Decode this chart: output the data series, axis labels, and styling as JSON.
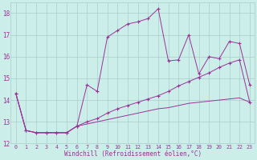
{
  "xlabel": "Windchill (Refroidissement éolien,°C)",
  "bg_color": "#cceee8",
  "grid_color": "#aacccc",
  "line_color": "#993399",
  "xlim": [
    -0.5,
    23.5
  ],
  "ylim": [
    12,
    18.5
  ],
  "yticks": [
    12,
    13,
    14,
    15,
    16,
    17,
    18
  ],
  "xticks": [
    0,
    1,
    2,
    3,
    4,
    5,
    6,
    7,
    8,
    9,
    10,
    11,
    12,
    13,
    14,
    15,
    16,
    17,
    18,
    19,
    20,
    21,
    22,
    23
  ],
  "series1": [
    [
      0,
      14.3
    ],
    [
      1,
      12.6
    ],
    [
      2,
      12.5
    ],
    [
      3,
      12.5
    ],
    [
      4,
      12.5
    ],
    [
      5,
      12.5
    ],
    [
      6,
      12.8
    ],
    [
      7,
      14.7
    ],
    [
      8,
      14.4
    ],
    [
      9,
      16.9
    ],
    [
      10,
      17.2
    ],
    [
      11,
      17.5
    ],
    [
      12,
      17.6
    ],
    [
      13,
      17.75
    ],
    [
      14,
      18.2
    ],
    [
      15,
      15.8
    ],
    [
      16,
      15.85
    ],
    [
      17,
      17.0
    ],
    [
      18,
      15.2
    ],
    [
      19,
      16.0
    ],
    [
      20,
      15.9
    ],
    [
      21,
      16.7
    ],
    [
      22,
      16.6
    ],
    [
      23,
      14.7
    ]
  ],
  "series2": [
    [
      0,
      14.3
    ],
    [
      1,
      12.6
    ],
    [
      2,
      12.5
    ],
    [
      3,
      12.5
    ],
    [
      4,
      12.5
    ],
    [
      5,
      12.5
    ],
    [
      6,
      12.8
    ],
    [
      7,
      13.0
    ],
    [
      8,
      13.15
    ],
    [
      9,
      13.4
    ],
    [
      10,
      13.6
    ],
    [
      11,
      13.75
    ],
    [
      12,
      13.9
    ],
    [
      13,
      14.05
    ],
    [
      14,
      14.2
    ],
    [
      15,
      14.4
    ],
    [
      16,
      14.65
    ],
    [
      17,
      14.85
    ],
    [
      18,
      15.05
    ],
    [
      19,
      15.25
    ],
    [
      20,
      15.5
    ],
    [
      21,
      15.7
    ],
    [
      22,
      15.85
    ],
    [
      23,
      13.9
    ]
  ],
  "series3": [
    [
      0,
      14.3
    ],
    [
      1,
      12.6
    ],
    [
      2,
      12.5
    ],
    [
      3,
      12.5
    ],
    [
      4,
      12.5
    ],
    [
      5,
      12.5
    ],
    [
      6,
      12.8
    ],
    [
      7,
      12.9
    ],
    [
      8,
      13.0
    ],
    [
      9,
      13.1
    ],
    [
      10,
      13.2
    ],
    [
      11,
      13.3
    ],
    [
      12,
      13.4
    ],
    [
      13,
      13.5
    ],
    [
      14,
      13.6
    ],
    [
      15,
      13.65
    ],
    [
      16,
      13.75
    ],
    [
      17,
      13.85
    ],
    [
      18,
      13.9
    ],
    [
      19,
      13.95
    ],
    [
      20,
      14.0
    ],
    [
      21,
      14.05
    ],
    [
      22,
      14.1
    ],
    [
      23,
      13.9
    ]
  ]
}
